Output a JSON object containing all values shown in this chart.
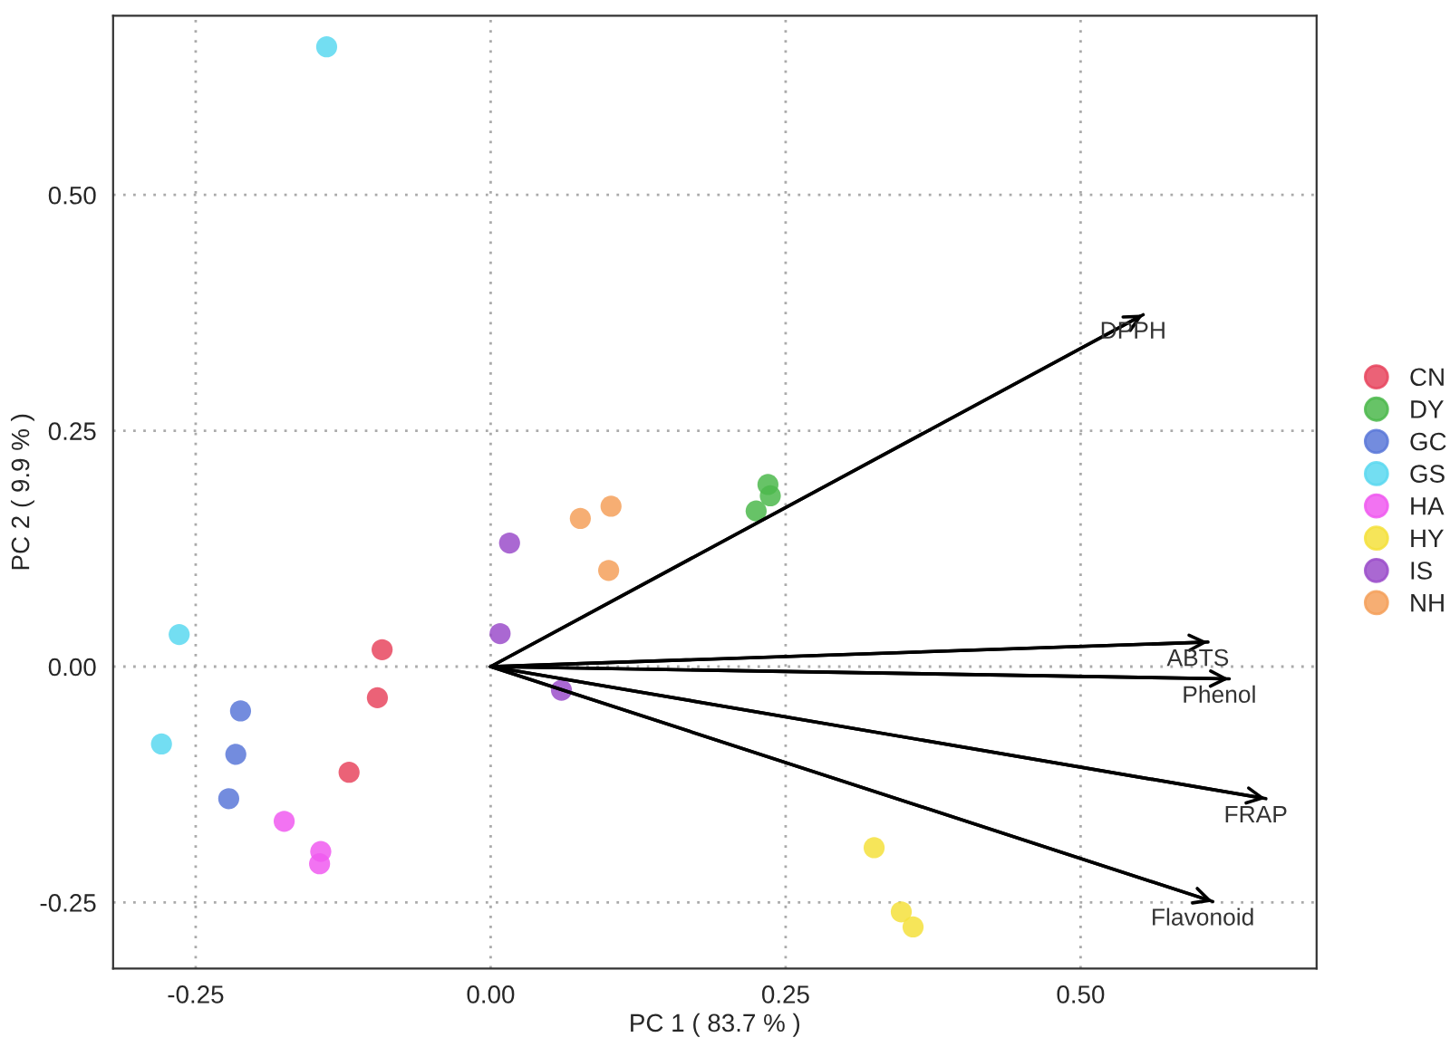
{
  "chart_data": {
    "type": "scatter",
    "xlabel": "PC 1 ( 83.7 % )",
    "ylabel": "PC 2 ( 9.9 % )",
    "xlim": [
      -0.32,
      0.7
    ],
    "ylim": [
      -0.32,
      0.69
    ],
    "xticks": [
      {
        "value": -0.25,
        "label": "-0.25"
      },
      {
        "value": 0,
        "label": "0.00"
      },
      {
        "value": 0.25,
        "label": "0.25"
      },
      {
        "value": 0.5,
        "label": "0.50"
      }
    ],
    "yticks": [
      {
        "value": -0.25,
        "label": "-0.25"
      },
      {
        "value": 0,
        "label": "0.00"
      },
      {
        "value": 0.25,
        "label": "0.25"
      },
      {
        "value": 0.5,
        "label": "0.50"
      }
    ],
    "grid": true,
    "legend": "right",
    "marker": "circle",
    "series": [
      {
        "name": "CN",
        "color": "#e8475f",
        "x": [
          -0.092,
          -0.096,
          -0.12
        ],
        "values": [
          0.018,
          -0.033,
          -0.112
        ]
      },
      {
        "name": "DY",
        "color": "#4cb84c",
        "x": [
          0.235,
          0.237,
          0.225
        ],
        "values": [
          0.193,
          0.181,
          0.165
        ]
      },
      {
        "name": "GC",
        "color": "#5a78d8",
        "x": [
          -0.212,
          -0.216,
          -0.222
        ],
        "values": [
          -0.047,
          -0.093,
          -0.14
        ]
      },
      {
        "name": "GS",
        "color": "#5ad8f0",
        "x": [
          -0.264,
          -0.279,
          -0.139
        ],
        "values": [
          0.034,
          -0.082,
          0.657
        ]
      },
      {
        "name": "HA",
        "color": "#f05af0",
        "x": [
          -0.175,
          -0.144,
          -0.145
        ],
        "values": [
          -0.164,
          -0.196,
          -0.209
        ]
      },
      {
        "name": "HY",
        "color": "#f5e13c",
        "x": [
          0.325,
          0.348,
          0.358
        ],
        "values": [
          -0.192,
          -0.26,
          -0.276
        ]
      },
      {
        "name": "IS",
        "color": "#9b4dca",
        "x": [
          0.016,
          0.008,
          0.06
        ],
        "values": [
          0.131,
          0.035,
          -0.025
        ]
      },
      {
        "name": "NH",
        "color": "#f5a05a",
        "x": [
          0.076,
          0.102,
          0.1
        ],
        "values": [
          0.157,
          0.17,
          0.102
        ]
      },
      {
        "name": "DPPH",
        "type": "line",
        "marker": "none",
        "color": "#000000",
        "x": [
          0,
          0.553
        ],
        "values": [
          0,
          0.373
        ]
      },
      {
        "name": "ABTS",
        "type": "line",
        "marker": "none",
        "color": "#000000",
        "x": [
          0,
          0.608
        ],
        "values": [
          0,
          0.026
        ]
      },
      {
        "name": "Phenol",
        "type": "line",
        "marker": "none",
        "color": "#000000",
        "x": [
          0,
          0.626
        ],
        "values": [
          0,
          -0.013
        ]
      },
      {
        "name": "FRAP",
        "type": "line",
        "marker": "none",
        "color": "#000000",
        "x": [
          0,
          0.657
        ],
        "values": [
          0,
          -0.14
        ]
      },
      {
        "name": "Flavonoid",
        "type": "line",
        "marker": "none",
        "color": "#000000",
        "x": [
          0,
          0.612
        ],
        "values": [
          0,
          -0.249
        ]
      }
    ]
  }
}
